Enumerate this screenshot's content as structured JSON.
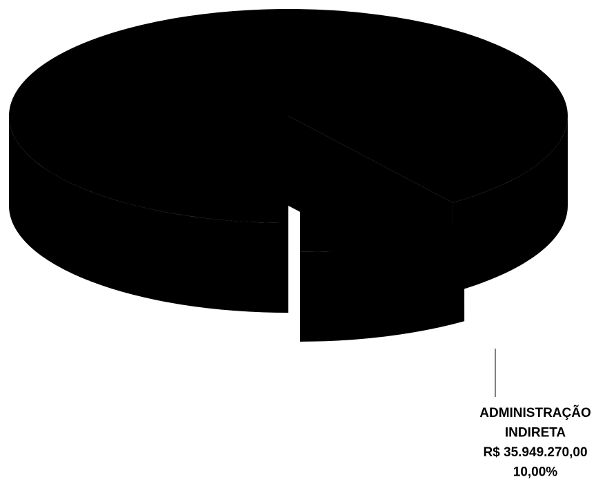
{
  "chart_data": {
    "type": "pie",
    "style": "3d-exploded",
    "title": "",
    "slices": [
      {
        "name": "",
        "percent": 90.0,
        "exploded": false,
        "label_lines": [],
        "color": "#000000"
      },
      {
        "name": "ADMINISTRAÇÃO INDIRETA",
        "value": 35949270.0,
        "percent": 10.0,
        "exploded": true,
        "label_lines": [
          "ADMINISTRAÇÃO",
          "INDIRETA",
          "R$ 35.949.270,00",
          "10,00%"
        ],
        "color": "#000000"
      }
    ],
    "background": "#ffffff"
  }
}
